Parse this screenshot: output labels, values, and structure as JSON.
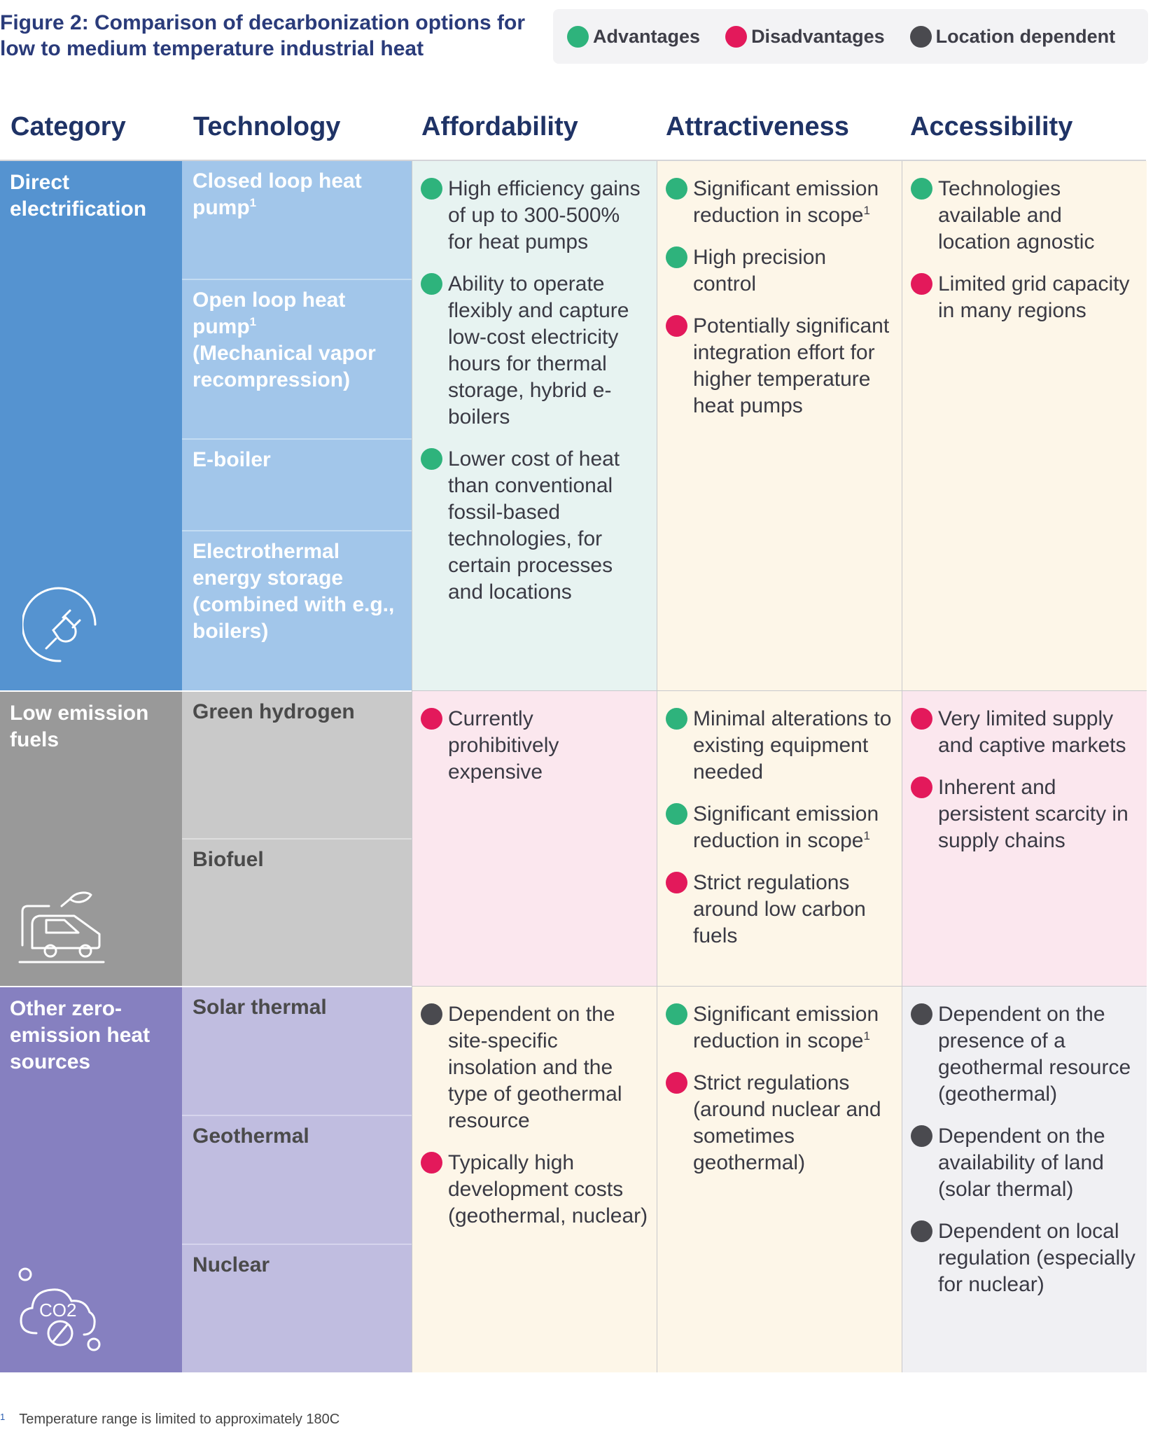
{
  "title": "Figure 2: Comparison of decarbonization options for low to medium temperature industrial heat",
  "legend": {
    "advantages": "Advantages",
    "disadvantages": "Disadvantages",
    "location": "Location dependent"
  },
  "colors": {
    "advantage": "#2eb37c",
    "disadvantage": "#e3195b",
    "location": "#4a4a4f",
    "direct_cat": "#5593d0",
    "direct_tech": "#a2c6ea",
    "direct_afford": "#e7f3f1",
    "direct_attract": "#fdf6e8",
    "direct_access": "#fdf6e8",
    "fuels_cat": "#999999",
    "fuels_tech": "#c9c9c9",
    "fuels_cells": "#fbe7ee",
    "other_cat": "#8680c0",
    "other_tech": "#c0bde0",
    "other_afford": "#fdf6e8",
    "other_attract": "#fdf6e8",
    "other_access": "#f0f0f3"
  },
  "headers": {
    "category": "Category",
    "technology": "Technology",
    "affordability": "Affordability",
    "attractiveness": "Attractiveness",
    "accessibility": "Accessibility"
  },
  "direct": {
    "category": "Direct electrification",
    "icon": "electric-plug-icon",
    "tech": [
      "Closed loop heat pump",
      "Open loop heat pump",
      "(Mechanical vapor recompression)",
      "E-boiler",
      "Electrothermal energy storage (combined with e.g., boilers)"
    ],
    "affordability": [
      {
        "type": "advantage",
        "text": "High efficiency gains of up to 300-500% for heat pumps"
      },
      {
        "type": "advantage",
        "text": "Ability to operate flexibly and capture low-cost electricity hours for thermal storage, hybrid e-boilers"
      },
      {
        "type": "advantage",
        "text": "Lower cost of heat than conventional fossil-based technologies, for certain processes and locations"
      }
    ],
    "attractiveness": [
      {
        "type": "advantage",
        "text": "Significant emission reduction in scope"
      },
      {
        "type": "advantage",
        "text": "High precision control"
      },
      {
        "type": "disadvantage",
        "text": "Potentially significant integration effort for higher temperature heat pumps"
      }
    ],
    "accessibility": [
      {
        "type": "advantage",
        "text": "Technologies available and location agnostic"
      },
      {
        "type": "disadvantage",
        "text": "Limited grid capacity in many regions"
      }
    ]
  },
  "fuels": {
    "category": "Low emission fuels",
    "icon": "biofuel-truck-icon",
    "tech": [
      "Green hydrogen",
      "Biofuel"
    ],
    "affordability": [
      {
        "type": "disadvantage",
        "text": "Currently prohibitively expensive"
      }
    ],
    "attractiveness": [
      {
        "type": "advantage",
        "text": "Minimal alterations to existing equipment needed"
      },
      {
        "type": "advantage",
        "text": "Significant emission reduction in scope"
      },
      {
        "type": "disadvantage",
        "text": "Strict regulations around low carbon fuels"
      }
    ],
    "accessibility": [
      {
        "type": "disadvantage",
        "text": "Very limited supply and captive markets"
      },
      {
        "type": "disadvantage",
        "text": "Inherent and persistent scarcity in supply chains"
      }
    ]
  },
  "other": {
    "category": "Other zero-emission heat sources",
    "icon": "co2-cloud-icon",
    "icon_text": "CO2",
    "tech": [
      "Solar thermal",
      "Geothermal",
      "Nuclear"
    ],
    "affordability": [
      {
        "type": "location",
        "text": "Dependent on the site-specific insolation and the type of geothermal resource"
      },
      {
        "type": "disadvantage",
        "text": "Typically high development costs (geothermal, nuclear)"
      }
    ],
    "attractiveness": [
      {
        "type": "advantage",
        "text": "Significant emission reduction in scope"
      },
      {
        "type": "disadvantage",
        "text": "Strict regulations (around nuclear and sometimes geothermal)"
      }
    ],
    "accessibility": [
      {
        "type": "location",
        "text": "Dependent on the presence of a geothermal resource (geothermal)"
      },
      {
        "type": "location",
        "text": "Dependent on the availability of land (solar thermal)"
      },
      {
        "type": "location",
        "text": "Dependent on local regulation (especially for nuclear)"
      }
    ]
  },
  "footnote_mark": "1",
  "footnote": "Temperature range is limited to approximately 180C"
}
